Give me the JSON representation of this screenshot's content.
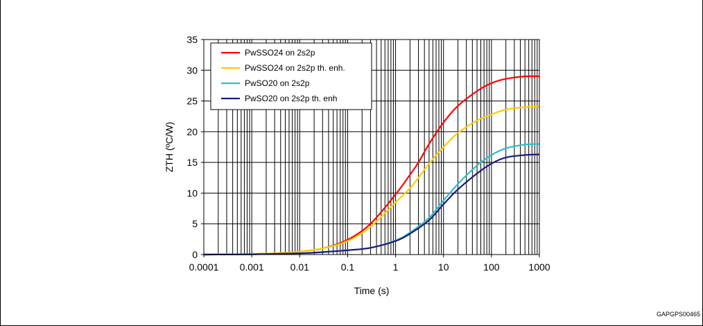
{
  "chart_data": {
    "type": "line",
    "title": "",
    "xlabel": "Time (s)",
    "ylabel": "ZTH (ºC/W)",
    "x_scale": "log",
    "xlim": [
      0.0001,
      1000
    ],
    "ylim": [
      0,
      35
    ],
    "x_tick_labels": [
      "0.0001",
      "0.001",
      "0.01",
      "0.1",
      "1",
      "10",
      "100",
      "1000"
    ],
    "y_tick_labels": [
      "0",
      "5",
      "10",
      "15",
      "20",
      "25",
      "30",
      "35"
    ],
    "grid": true,
    "legend_position": "top-left",
    "series": [
      {
        "name": "PwSSO24 on 2s2p",
        "color": "#ff0000",
        "points": [
          [
            0.0001,
            0
          ],
          [
            0.0008,
            0.05
          ],
          [
            0.001,
            0.1
          ],
          [
            0.003,
            0.2
          ],
          [
            0.01,
            0.5
          ],
          [
            0.03,
            1.0
          ],
          [
            0.1,
            2.4
          ],
          [
            0.3,
            5.0
          ],
          [
            1,
            9.8
          ],
          [
            2,
            13.0
          ],
          [
            3,
            15.0
          ],
          [
            5,
            18.0
          ],
          [
            10,
            21.5
          ],
          [
            20,
            24.2
          ],
          [
            50,
            26.6
          ],
          [
            100,
            27.9
          ],
          [
            200,
            28.6
          ],
          [
            500,
            29.0
          ],
          [
            1000,
            29.0
          ]
        ]
      },
      {
        "name": "PwSSO24 on 2s2p th. enh.",
        "color": "#ffcc00",
        "points": [
          [
            0.0001,
            0
          ],
          [
            0.0008,
            0.05
          ],
          [
            0.001,
            0.1
          ],
          [
            0.003,
            0.2
          ],
          [
            0.01,
            0.5
          ],
          [
            0.03,
            1.0
          ],
          [
            0.1,
            2.2
          ],
          [
            0.3,
            4.5
          ],
          [
            1,
            8.5
          ],
          [
            2,
            10.8
          ],
          [
            3,
            12.5
          ],
          [
            5,
            14.8
          ],
          [
            10,
            17.5
          ],
          [
            20,
            19.8
          ],
          [
            50,
            21.8
          ],
          [
            100,
            22.8
          ],
          [
            200,
            23.6
          ],
          [
            500,
            24.0
          ],
          [
            1000,
            24.1
          ]
        ]
      },
      {
        "name": "PwSO20 on 2s2p",
        "color": "#33bbcc",
        "points": [
          [
            0.0001,
            0
          ],
          [
            0.001,
            0.05
          ],
          [
            0.01,
            0.2
          ],
          [
            0.03,
            0.4
          ],
          [
            0.1,
            0.7
          ],
          [
            0.3,
            1.1
          ],
          [
            1,
            2.3
          ],
          [
            2,
            3.6
          ],
          [
            5,
            6.0
          ],
          [
            10,
            8.8
          ],
          [
            20,
            11.5
          ],
          [
            50,
            14.5
          ],
          [
            100,
            16.2
          ],
          [
            200,
            17.3
          ],
          [
            500,
            17.9
          ],
          [
            1000,
            18.0
          ]
        ]
      },
      {
        "name": "PwSO20 on 2s2p th. enh",
        "color": "#1a1a7a",
        "points": [
          [
            0.0001,
            0
          ],
          [
            0.001,
            0.05
          ],
          [
            0.01,
            0.2
          ],
          [
            0.03,
            0.4
          ],
          [
            0.1,
            0.7
          ],
          [
            0.3,
            1.1
          ],
          [
            1,
            2.2
          ],
          [
            2,
            3.4
          ],
          [
            5,
            5.6
          ],
          [
            10,
            8.2
          ],
          [
            20,
            10.6
          ],
          [
            50,
            13.2
          ],
          [
            100,
            14.8
          ],
          [
            200,
            15.8
          ],
          [
            500,
            16.2
          ],
          [
            1000,
            16.3
          ]
        ]
      }
    ]
  },
  "figure_code": "GAPGPS00465"
}
